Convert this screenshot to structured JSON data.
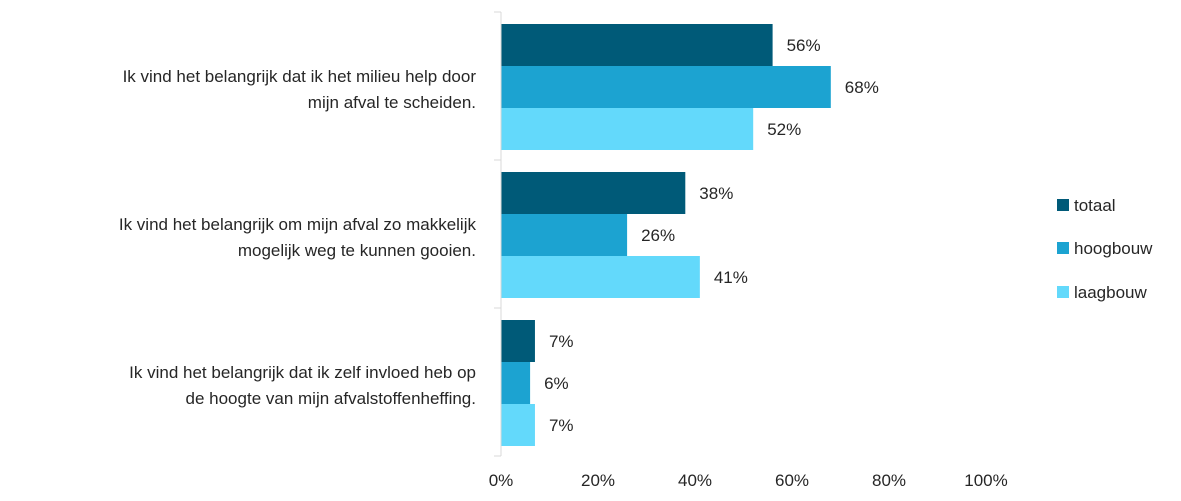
{
  "chart_data": {
    "type": "bar",
    "orientation": "horizontal",
    "categories": [
      [
        "Ik vind het belangrijk dat ik het milieu help door",
        "mijn afval te scheiden."
      ],
      [
        "Ik vind het belangrijk om mijn afval zo makkelijk",
        "mogelijk weg te kunnen gooien."
      ],
      [
        "Ik vind het belangrijk dat ik zelf invloed heb op",
        "de hoogte van mijn afvalstoffenheffing."
      ]
    ],
    "series": [
      {
        "name": "totaal",
        "color": "#005a78",
        "values": [
          56,
          38,
          7
        ],
        "labels": [
          "56%",
          "38%",
          "7%"
        ]
      },
      {
        "name": "hoogbouw",
        "color": "#1ca3d1",
        "values": [
          68,
          26,
          6
        ],
        "labels": [
          "68%",
          "26%",
          "6%"
        ]
      },
      {
        "name": "laagbouw",
        "color": "#63d9fb",
        "values": [
          52,
          41,
          7
        ],
        "labels": [
          "52%",
          "41%",
          "7%"
        ]
      }
    ],
    "xlim": [
      0,
      100
    ],
    "xticks": [
      0,
      20,
      40,
      60,
      80,
      100
    ],
    "xtick_labels": [
      "0%",
      "20%",
      "40%",
      "60%",
      "80%",
      "100%"
    ],
    "grid": false,
    "legend_position": "right"
  }
}
